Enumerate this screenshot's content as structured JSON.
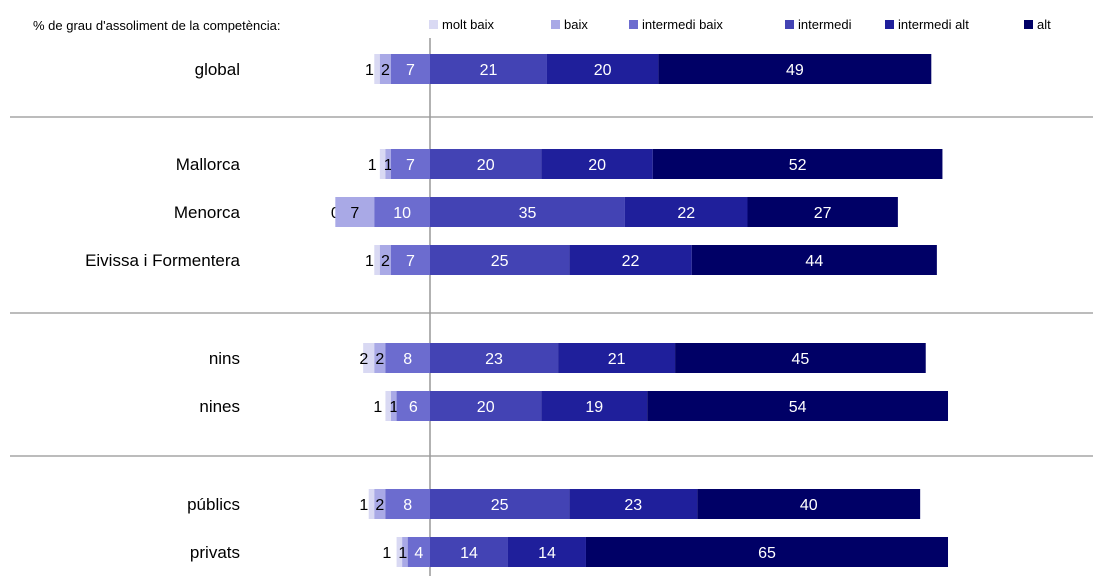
{
  "chart_data": {
    "type": "bar",
    "stacked": "diverging",
    "legend_title": "% de grau d'assoliment de la competència:",
    "legend_position": "top",
    "series": [
      {
        "name": "molt baix",
        "color": "#d9d9f3"
      },
      {
        "name": "baix",
        "color": "#a9a9e6"
      },
      {
        "name": "intermedi baix",
        "color": "#6c6ccf"
      },
      {
        "name": "intermedi",
        "color": "#4343b4"
      },
      {
        "name": "intermedi alt",
        "color": "#1f1f9b"
      },
      {
        "name": "alt",
        "color": "#000066"
      }
    ],
    "groups": [
      {
        "rows": [
          {
            "category": "global",
            "values": [
              1,
              2,
              7,
              21,
              20,
              49
            ]
          }
        ]
      },
      {
        "rows": [
          {
            "category": "Mallorca",
            "values": [
              1,
              1,
              7,
              20,
              20,
              52
            ]
          },
          {
            "category": "Menorca",
            "values": [
              0,
              7,
              10,
              35,
              22,
              27
            ]
          },
          {
            "category": "Eivissa i Formentera",
            "values": [
              1,
              2,
              7,
              25,
              22,
              44
            ]
          }
        ]
      },
      {
        "rows": [
          {
            "category": "nins",
            "values": [
              2,
              2,
              8,
              23,
              21,
              45
            ]
          },
          {
            "category": "nines",
            "values": [
              1,
              1,
              6,
              20,
              19,
              54
            ]
          }
        ]
      },
      {
        "rows": [
          {
            "category": "públics",
            "values": [
              1,
              2,
              8,
              25,
              23,
              40
            ]
          },
          {
            "category": "privats",
            "values": [
              1,
              1,
              4,
              14,
              14,
              65
            ]
          }
        ]
      }
    ]
  }
}
